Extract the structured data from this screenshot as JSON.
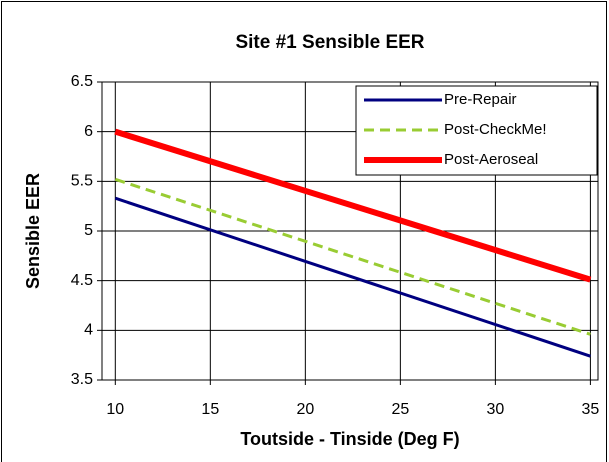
{
  "chart_data": {
    "type": "line",
    "title": "Site #1 Sensible EER",
    "x_label": "Toutside - Tinside (Deg F)",
    "y_label": "Sensible EER",
    "series": [
      {
        "name": "Pre-Repair",
        "color": "#000080",
        "style": "solid",
        "width": 3,
        "x": [
          10,
          35
        ],
        "values": [
          5.33,
          3.74
        ]
      },
      {
        "name": "Post-CheckMe!",
        "color": "#99cc33",
        "style": "dashed",
        "width": 3,
        "x": [
          10,
          35
        ],
        "values": [
          5.52,
          3.96
        ]
      },
      {
        "name": "Post-Aeroseal",
        "color": "#ff0000",
        "style": "solid",
        "width": 6,
        "x": [
          10,
          35
        ],
        "values": [
          6.0,
          4.51
        ]
      }
    ],
    "xlim": [
      9.3,
      35.4
    ],
    "xticks": [
      10,
      15,
      20,
      25,
      30,
      35
    ],
    "ylim": [
      3.5,
      6.5
    ],
    "yticks": [
      3.5,
      4,
      4.5,
      5,
      5.5,
      6,
      6.5
    ],
    "grid": true,
    "legend": "top-right"
  }
}
